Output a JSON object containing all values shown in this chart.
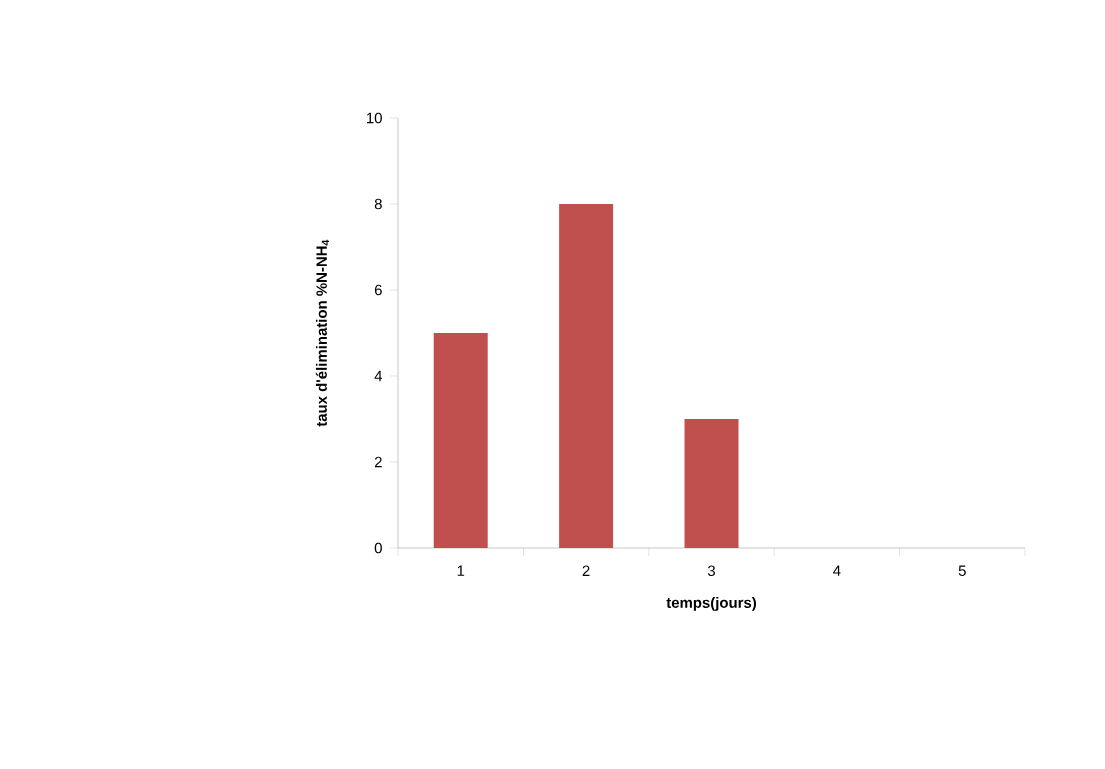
{
  "chart_data": {
    "type": "bar",
    "xlabel": "temps(jours)",
    "ylabel": "taux d'élimination %N-NH$_{4}$",
    "categories": [
      "1",
      "2",
      "3",
      "4",
      "5"
    ],
    "values": [
      5,
      8,
      3,
      0,
      0
    ],
    "color": "#c0504d",
    "ylim": [
      0,
      10
    ],
    "yticks": [
      0,
      2,
      4,
      6,
      8,
      10
    ],
    "grid": false
  }
}
